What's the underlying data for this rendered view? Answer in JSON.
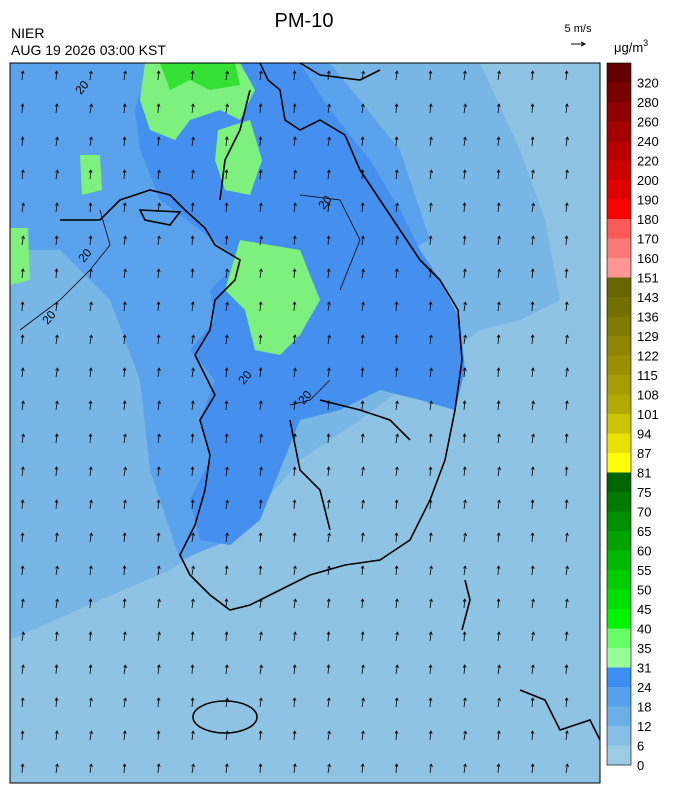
{
  "header": {
    "title": "PM-10",
    "agency": "NIER",
    "timestamp": "AUG 19 2026 03:00 KST",
    "wind_scale": "5 m/s"
  },
  "colorbar": {
    "unit": "μg/m",
    "unit_sup": "3",
    "ticks": [
      320,
      280,
      260,
      240,
      220,
      200,
      190,
      180,
      170,
      160,
      151,
      143,
      136,
      129,
      122,
      115,
      108,
      101,
      94,
      87,
      81,
      75,
      70,
      65,
      60,
      55,
      50,
      45,
      40,
      35,
      31,
      24,
      18,
      12,
      6,
      0
    ],
    "colors": [
      "#660000",
      "#7a0000",
      "#8f0000",
      "#a30000",
      "#b80000",
      "#cc0000",
      "#e00000",
      "#ff0000",
      "#ff5a5a",
      "#ff7878",
      "#ff9696",
      "#666600",
      "#736f00",
      "#807a00",
      "#8c8600",
      "#999200",
      "#a69d00",
      "#b3aa00",
      "#ccc400",
      "#e8e000",
      "#ffff00",
      "#006600",
      "#007a00",
      "#008f00",
      "#00a300",
      "#00b800",
      "#00cc00",
      "#00e000",
      "#00f500",
      "#66ff66",
      "#99ff99",
      "#3a8ff0",
      "#56a0ec",
      "#6caee8",
      "#86bde4",
      "#9ccbe4"
    ]
  },
  "map": {
    "contour_labels": [
      "20",
      "20",
      "20",
      "20",
      "20",
      "20"
    ]
  }
}
